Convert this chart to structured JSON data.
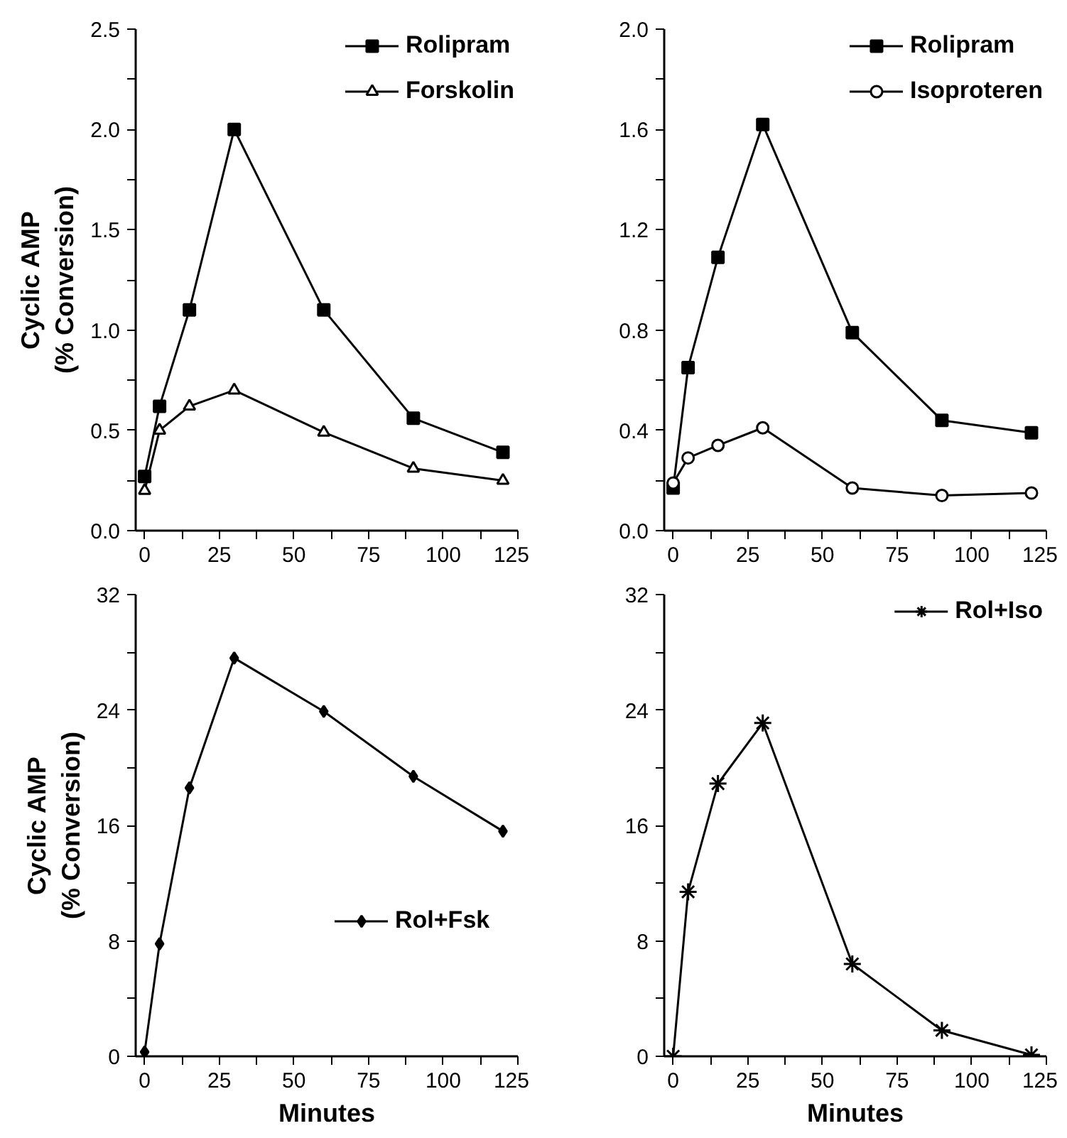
{
  "chart_data": [
    {
      "type": "line",
      "ylabel": "Cyclic AMP\n(% Conversion)",
      "x": [
        0,
        5,
        15,
        30,
        60,
        90,
        120
      ],
      "xlim": [
        -3,
        125
      ],
      "xticks": [
        0,
        {
          "value": 12.5,
          "label": null
        },
        25,
        {
          "value": 37.5,
          "label": null
        },
        50,
        {
          "value": 62.5,
          "label": null
        },
        75,
        {
          "value": 87.5,
          "label": null
        },
        100,
        {
          "value": 112.5,
          "label": null
        },
        125
      ],
      "ylim": [
        0,
        2.5
      ],
      "yticks": [
        {
          "value": 0,
          "label": "0.0"
        },
        {
          "value": 0.25,
          "label": null
        },
        0.5,
        {
          "value": 0.75,
          "label": null
        },
        {
          "value": 1,
          "label": "1.0"
        },
        {
          "value": 1.25,
          "label": null
        },
        1.5,
        {
          "value": 1.75,
          "label": null
        },
        {
          "value": 2,
          "label": "2.0"
        },
        {
          "value": 2.25,
          "label": null
        },
        2.5
      ],
      "grid": false,
      "legend": "top right",
      "line_style": "solid",
      "series": [
        {
          "name": "Rolipram",
          "color": "#000000",
          "marker": "square",
          "values": [
            0.27,
            0.62,
            1.1,
            2.0,
            1.1,
            0.56,
            0.39
          ]
        },
        {
          "name": "Forskolin",
          "color": "#000000",
          "marker": "triangle",
          "values": [
            0.2,
            0.5,
            0.62,
            0.7,
            0.49,
            0.31,
            0.25
          ]
        }
      ]
    },
    {
      "type": "line",
      "x": [
        0,
        5,
        15,
        30,
        60,
        90,
        120
      ],
      "xlim": [
        -3,
        125
      ],
      "xticks": [
        0,
        {
          "value": 12.5,
          "label": null
        },
        25,
        {
          "value": 37.5,
          "label": null
        },
        50,
        {
          "value": 62.5,
          "label": null
        },
        75,
        {
          "value": 87.5,
          "label": null
        },
        100,
        {
          "value": 112.5,
          "label": null
        },
        125
      ],
      "ylim": [
        0,
        2.0
      ],
      "yticks": [
        {
          "value": 0,
          "label": "0.0"
        },
        {
          "value": 0.2,
          "label": null
        },
        0.4,
        {
          "value": 0.6,
          "label": null
        },
        0.8,
        {
          "value": 1.0,
          "label": null
        },
        1.2,
        {
          "value": 1.4,
          "label": null
        },
        1.6,
        {
          "value": 1.8,
          "label": null
        },
        {
          "value": 2,
          "label": "2.0"
        }
      ],
      "grid": false,
      "legend": "top right",
      "line_style": "solid",
      "series": [
        {
          "name": "Rolipram",
          "color": "#000000",
          "marker": "square",
          "values": [
            0.17,
            0.65,
            1.09,
            1.62,
            0.79,
            0.44,
            0.39
          ]
        },
        {
          "name": "Isoproteren",
          "color": "#000000",
          "marker": "circle",
          "values": [
            0.19,
            0.29,
            0.34,
            0.41,
            0.17,
            0.14,
            0.15
          ]
        }
      ]
    },
    {
      "type": "line",
      "xlabel": "Minutes",
      "ylabel": "Cyclic AMP\n(% Conversion)",
      "x": [
        0,
        5,
        15,
        30,
        60,
        90,
        120
      ],
      "xlim": [
        -3,
        125
      ],
      "xticks": [
        0,
        {
          "value": 12.5,
          "label": null
        },
        25,
        {
          "value": 37.5,
          "label": null
        },
        50,
        {
          "value": 62.5,
          "label": null
        },
        75,
        {
          "value": 87.5,
          "label": null
        },
        100,
        {
          "value": 112.5,
          "label": null
        },
        125
      ],
      "ylim": [
        0,
        32
      ],
      "yticks": [
        0,
        {
          "value": 4,
          "label": null
        },
        8,
        {
          "value": 12,
          "label": null
        },
        16,
        {
          "value": 20,
          "label": null
        },
        24,
        {
          "value": 28,
          "label": null
        },
        32
      ],
      "grid": false,
      "legend": "right",
      "line_style": "solid",
      "series": [
        {
          "name": "Rol+Fsk",
          "color": "#000000",
          "marker": "diamond",
          "values": [
            0.3,
            7.8,
            18.6,
            27.6,
            23.9,
            19.4,
            15.6
          ]
        }
      ]
    },
    {
      "type": "line",
      "xlabel": "Minutes",
      "x": [
        0,
        5,
        15,
        30,
        60,
        90,
        120
      ],
      "xlim": [
        -3,
        125
      ],
      "xticks": [
        0,
        {
          "value": 12.5,
          "label": null
        },
        25,
        {
          "value": 37.5,
          "label": null
        },
        50,
        {
          "value": 62.5,
          "label": null
        },
        75,
        {
          "value": 87.5,
          "label": null
        },
        100,
        {
          "value": 112.5,
          "label": null
        },
        125
      ],
      "ylim": [
        0,
        32
      ],
      "yticks": [
        0,
        {
          "value": 4,
          "label": null
        },
        8,
        {
          "value": 12,
          "label": null
        },
        16,
        {
          "value": 20,
          "label": null
        },
        24,
        {
          "value": 28,
          "label": null
        },
        32
      ],
      "grid": false,
      "legend": "top right",
      "line_style": "solid",
      "series": [
        {
          "name": "Rol+Iso",
          "color": "#000000",
          "marker": "cross",
          "values": [
            0,
            11.4,
            18.9,
            23.1,
            6.4,
            1.8,
            0.1
          ]
        }
      ]
    }
  ]
}
